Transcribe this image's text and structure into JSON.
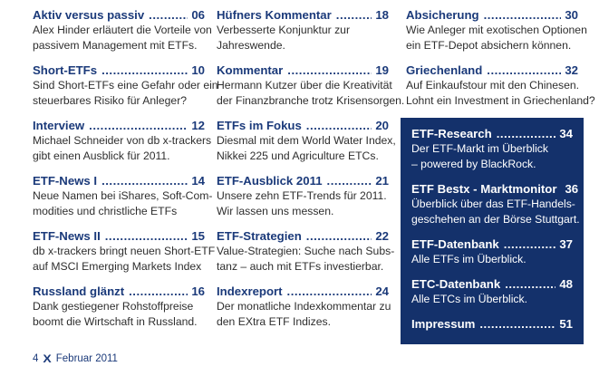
{
  "page": {
    "colors": {
      "accent_navy": "#1b3a7a",
      "box_navy": "#14316b",
      "body_text": "#2e2e2e",
      "background": "#ffffff"
    }
  },
  "footer": {
    "page_number": "4",
    "logo_glyph": "X",
    "issue": "Februar 2011"
  },
  "columns": [
    {
      "entries": [
        {
          "title": "Aktiv versus passiv",
          "page": "06",
          "desc_lines": [
            "Alex Hinder erläutert die Vorteile von",
            "passivem Management mit ETFs."
          ]
        },
        {
          "title": "Short-ETFs",
          "page": "10",
          "desc_lines": [
            "Sind Short-ETFs eine Gefahr oder ein",
            "steuerbares Risiko für Anleger?"
          ]
        },
        {
          "title": "Interview",
          "page": "12",
          "desc_lines": [
            "Michael Schneider von db x-trackers",
            "gibt einen Ausblick für 2011."
          ]
        },
        {
          "title": "ETF-News I",
          "page": "14",
          "desc_lines": [
            "Neue Namen bei iShares, Soft-Com-",
            "modities und christliche ETFs"
          ]
        },
        {
          "title": "ETF-News II",
          "page": "15",
          "desc_lines": [
            "db x-trackers bringt neuen Short-ETF",
            "auf MSCI Emerging Markets Index"
          ]
        },
        {
          "title": "Russland glänzt",
          "page": "16",
          "desc_lines": [
            "Dank gestiegener Rohstoffpreise",
            "boomt die Wirtschaft in Russland."
          ]
        }
      ]
    },
    {
      "entries": [
        {
          "title": "Hüfners Kommentar",
          "page": "18",
          "desc_lines": [
            "Verbesserte Konjunktur zur",
            "Jahreswende."
          ]
        },
        {
          "title": "Kommentar",
          "page": "19",
          "desc_lines": [
            "Hermann Kutzer über die Kreativität",
            "der Finanzbranche trotz Krisensorgen."
          ]
        },
        {
          "title": "ETFs im Fokus",
          "page": "20",
          "desc_lines": [
            "Diesmal mit dem World Water Index,",
            "Nikkei 225 und Agriculture ETCs."
          ]
        },
        {
          "title": "ETF-Ausblick 2011",
          "page": "21",
          "desc_lines": [
            "Unsere zehn ETF-Trends für 2011.",
            "Wir lassen uns messen."
          ]
        },
        {
          "title": "ETF-Strategien",
          "page": "22",
          "desc_lines": [
            "Value-Strategien: Suche nach Subs-",
            "tanz – auch mit ETFs investierbar."
          ]
        },
        {
          "title": "Indexreport",
          "page": "24",
          "desc_lines": [
            "Der monatliche Indexkommentar zu",
            "den EXtra ETF Indizes."
          ]
        }
      ]
    },
    {
      "entries": [
        {
          "title": "Absicherung",
          "page": "30",
          "desc_lines": [
            "Wie Anleger mit exotischen Optionen",
            "ein ETF-Depot absichern können."
          ]
        },
        {
          "title": "Griechenland",
          "page": "32",
          "desc_lines": [
            "Auf Einkaufstour mit den Chinesen.",
            "Lohnt ein Investment in Griechenland?"
          ]
        }
      ],
      "box_entries": [
        {
          "title": "ETF-Research",
          "page": "34",
          "desc_lines": [
            "Der ETF-Markt im Überblick",
            "– powered by BlackRock."
          ]
        },
        {
          "title": "ETF Bestx - Marktmonitor",
          "page": "36",
          "desc_lines": [
            "Überblick über das ETF-Handels-",
            "geschehen an der Börse Stuttgart."
          ]
        },
        {
          "title": "ETF-Datenbank",
          "page": "37",
          "desc_lines": [
            "Alle ETFs im Überblick."
          ]
        },
        {
          "title": "ETC-Datenbank",
          "page": "48",
          "desc_lines": [
            "Alle ETCs im Überblick."
          ]
        },
        {
          "title": "Impressum",
          "page": "51",
          "desc_lines": []
        }
      ]
    }
  ]
}
